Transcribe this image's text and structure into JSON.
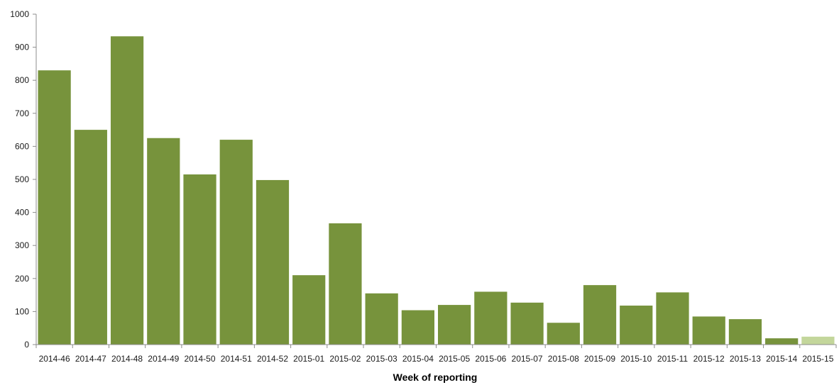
{
  "chart_data": {
    "type": "bar",
    "title": "",
    "xlabel": "Week of reporting",
    "ylabel": "",
    "ylim": [
      0,
      1000
    ],
    "yticks": [
      0,
      100,
      200,
      300,
      400,
      500,
      600,
      700,
      800,
      900,
      1000
    ],
    "grid": false,
    "categories": [
      "2014-46",
      "2014-47",
      "2014-48",
      "2014-49",
      "2014-50",
      "2014-51",
      "2014-52",
      "2015-01",
      "2015-02",
      "2015-03",
      "2015-04",
      "2015-05",
      "2015-06",
      "2015-07",
      "2015-08",
      "2015-09",
      "2015-10",
      "2015-11",
      "2015-12",
      "2015-13",
      "2015-14",
      "2015-15"
    ],
    "values": [
      830,
      650,
      933,
      625,
      515,
      620,
      498,
      210,
      367,
      155,
      104,
      120,
      160,
      127,
      66,
      180,
      118,
      158,
      85,
      77,
      19,
      24
    ],
    "colors": {
      "bar": "#77933c",
      "bar_last": "#c3d69b",
      "axis": "#8c8c8c"
    }
  }
}
